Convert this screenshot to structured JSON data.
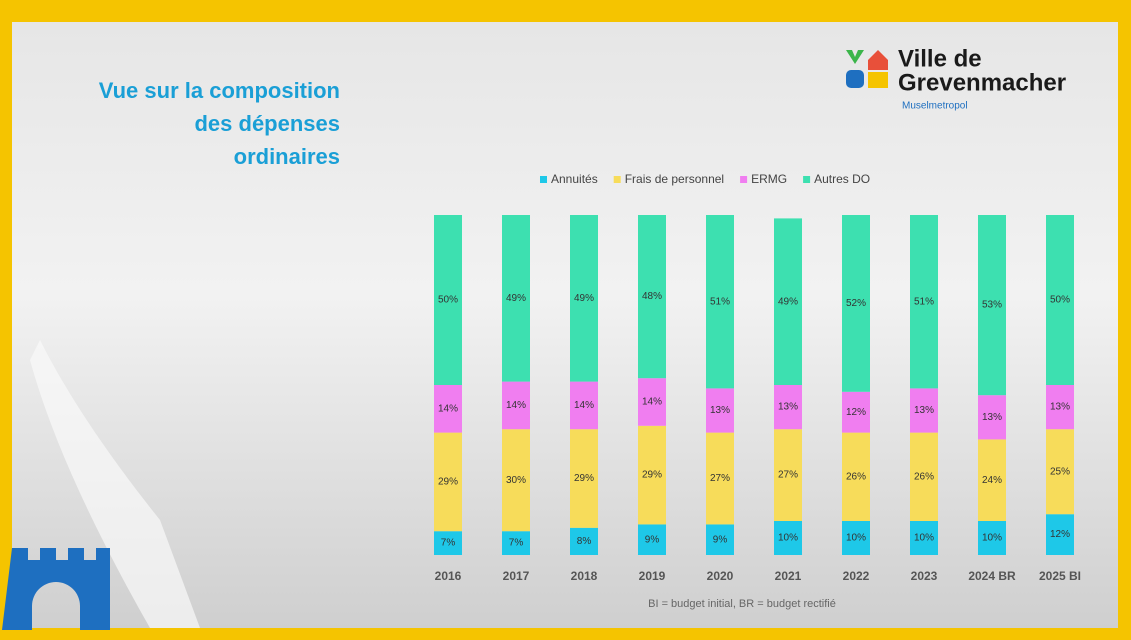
{
  "chart_data": {
    "type": "stacked_bar",
    "title": "Vue sur la composition des dépenses ordinaires",
    "categories": [
      "2016",
      "2017",
      "2018",
      "2019",
      "2020",
      "2021",
      "2022",
      "2023",
      "2024 BR",
      "2025 BI"
    ],
    "series": [
      {
        "name": "Annuités",
        "color": "#1ec8e8",
        "values": [
          7,
          7,
          8,
          9,
          9,
          10,
          10,
          10,
          10,
          12
        ],
        "value_labels": [
          "7%",
          "7%",
          "8%",
          "9%",
          "9%",
          "10%",
          "10%",
          "10%",
          "10%",
          "12%"
        ]
      },
      {
        "name": "Frais de personnel",
        "color": "#f7dc5a",
        "values": [
          29,
          30,
          29,
          29,
          27,
          27,
          26,
          26,
          24,
          25
        ],
        "value_labels": [
          "29%",
          "30%",
          "29%",
          "29%",
          "27%",
          "27%",
          "26%",
          "26%",
          "24%",
          "25%"
        ]
      },
      {
        "name": "ERMG",
        "color": "#f07ef0",
        "values": [
          14,
          14,
          14,
          14,
          13,
          13,
          12,
          13,
          13,
          13
        ],
        "value_labels": [
          "14%",
          "14%",
          "14%",
          "14%",
          "13%",
          "13%",
          "12%",
          "13%",
          "13%",
          "13%"
        ]
      },
      {
        "name": "Autres DO",
        "color": "#3de0b0",
        "values": [
          50,
          49,
          49,
          48,
          51,
          49,
          52,
          51,
          53,
          50
        ],
        "value_labels": [
          "50%",
          "49%",
          "49%",
          "48%",
          "51%",
          "49%",
          "52%",
          "51%",
          "53%",
          "50%"
        ]
      }
    ],
    "ylim": [
      0,
      100
    ],
    "legend": "top",
    "note": "BI = budget initial,  BR = budget rectifié"
  },
  "logo": {
    "line1": "Ville de",
    "line2": "Grevenmacher",
    "tagline": "Muselmetropol"
  }
}
